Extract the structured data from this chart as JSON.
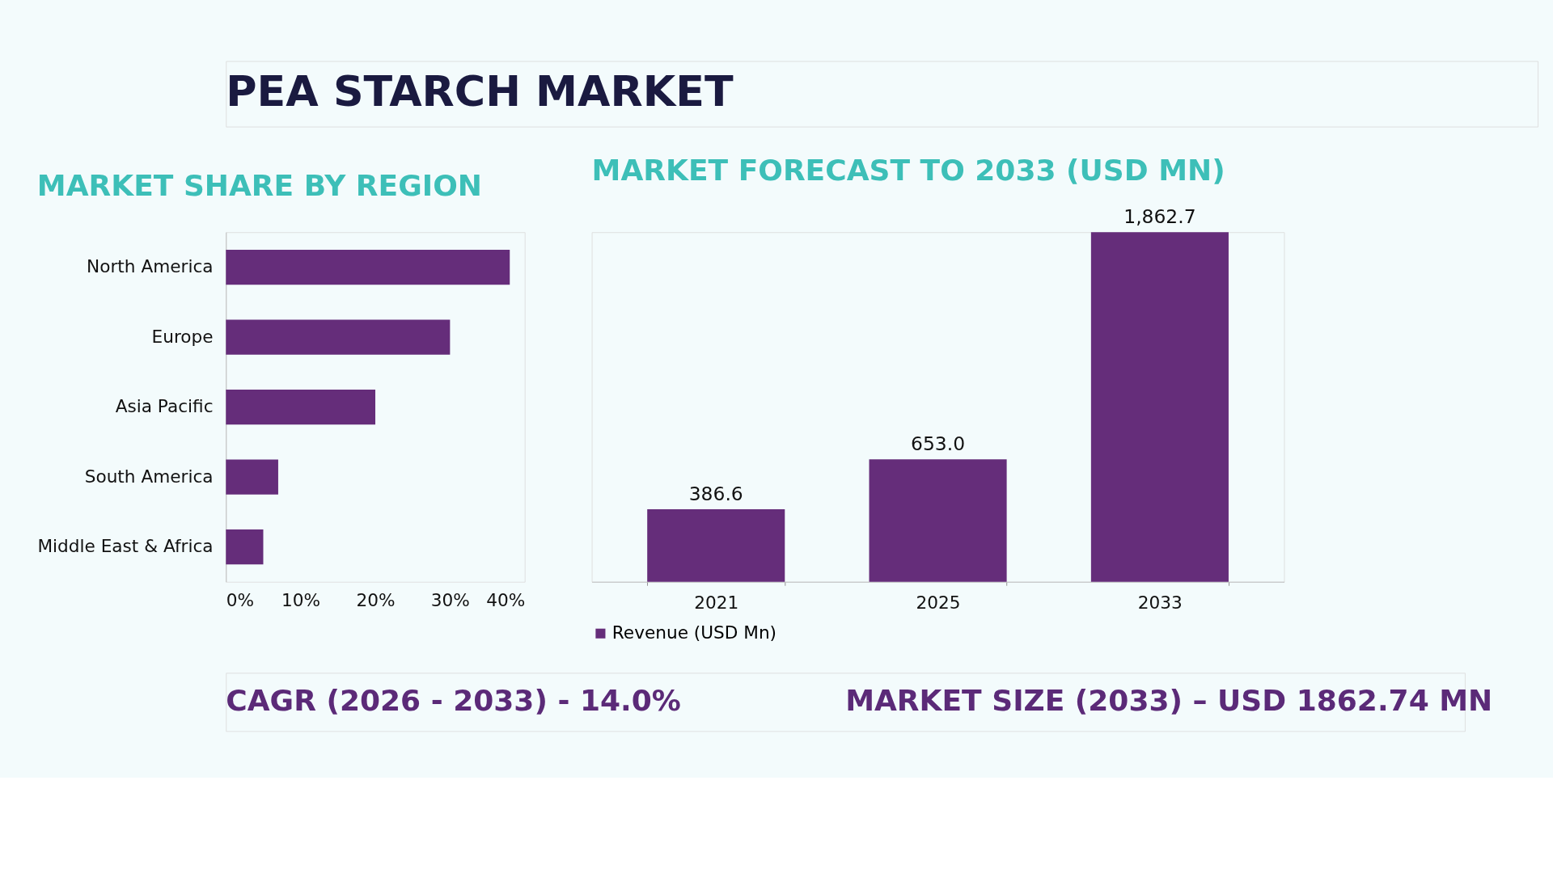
{
  "chart_data": [
    {
      "type": "other",
      "title": "PEA STARCH MARKET"
    },
    {
      "type": "bar",
      "title": "MARKET SHARE BY REGION",
      "orientation": "horizontal",
      "categories": [
        "North America",
        "Europe",
        "Asia Pacific",
        "South America",
        "Middle East & Africa"
      ],
      "series": [
        {
          "color": "#652d7a",
          "values": [
            38,
            30,
            20,
            7,
            5
          ]
        }
      ],
      "xlim": [
        0,
        40
      ],
      "xticks": [
        {
          "value": 0,
          "label": "0%"
        },
        {
          "value": 10,
          "label": "10%"
        },
        {
          "value": 20,
          "label": "20%"
        },
        {
          "value": 30,
          "label": "30%"
        },
        {
          "value": 40,
          "label": "40%"
        }
      ],
      "grid": false,
      "legend": false
    },
    {
      "type": "bar",
      "title": "MARKET FORECAST TO 2033 (USD MN)",
      "categories": [
        "2021",
        "2025",
        "2033"
      ],
      "series": [
        {
          "name": "Revenue (USD Mn)",
          "color": "#652d7a",
          "values": [
            386.6,
            653.0,
            1862.7
          ],
          "value_labels": [
            "386.6",
            "653.0",
            "1,862.7"
          ]
        }
      ],
      "grid": false,
      "legend": "bottom",
      "tick_labels": "x"
    },
    {
      "type": "other",
      "annotations": [
        "CAGR (2026 - 2033) - 14.0%",
        "MARKET SIZE (2033) – USD 1862.74 MN"
      ]
    }
  ]
}
